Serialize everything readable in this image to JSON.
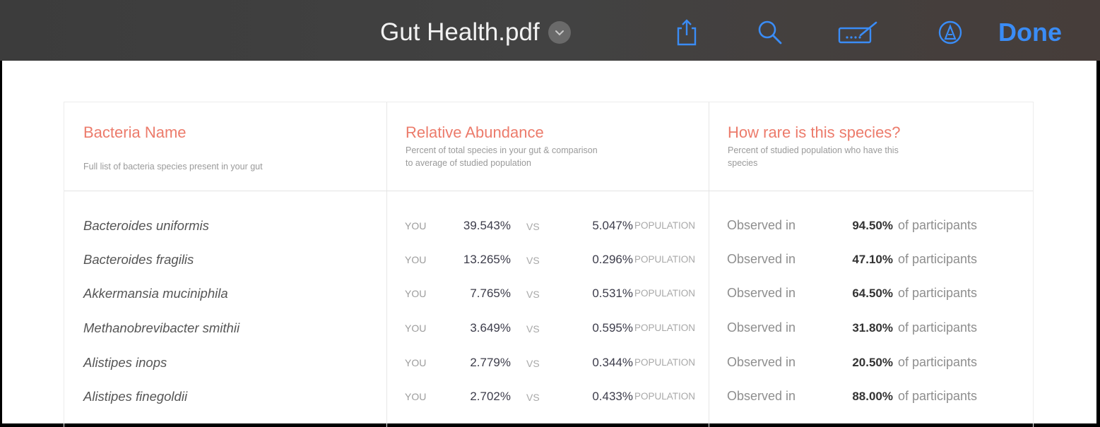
{
  "toolbar": {
    "title": "Gut Health.pdf",
    "done_label": "Done",
    "icons": [
      "chevron-down-icon",
      "share-icon",
      "search-icon",
      "signature-icon",
      "markup-icon"
    ],
    "accent": "#3a8cf6"
  },
  "table": {
    "columns": [
      {
        "title": "Bacteria Name",
        "subtitle_lines": [
          "Full list of bacteria species present in your gut"
        ]
      },
      {
        "title": "Relative Abundance",
        "subtitle_lines": [
          "Percent of total species in your gut & comparison",
          "to average of studied population"
        ]
      },
      {
        "title": "How rare is this species?",
        "subtitle_lines": [
          "Percent of studied population who have this",
          "species"
        ]
      }
    ],
    "labels": {
      "you": "YOU",
      "vs": "VS",
      "population": "POPULATION",
      "observed": "Observed in",
      "of_participants": "of participants"
    },
    "rows": [
      {
        "name": "Bacteroides uniformis",
        "you": "39.543%",
        "population": "5.047%",
        "observed": "94.50%"
      },
      {
        "name": "Bacteroides fragilis",
        "you": "13.265%",
        "population": "0.296%",
        "observed": "47.10%"
      },
      {
        "name": "Akkermansia muciniphila",
        "you": "7.765%",
        "population": "0.531%",
        "observed": "64.50%"
      },
      {
        "name": "Methanobrevibacter smithii",
        "you": "3.649%",
        "population": "0.595%",
        "observed": "31.80%"
      },
      {
        "name": "Alistipes inops",
        "you": "2.779%",
        "population": "0.344%",
        "observed": "20.50%"
      },
      {
        "name": "Alistipes finegoldii",
        "you": "2.702%",
        "population": "0.433%",
        "observed": "88.00%"
      }
    ]
  },
  "colors": {
    "header_accent": "#ec7b6b"
  }
}
